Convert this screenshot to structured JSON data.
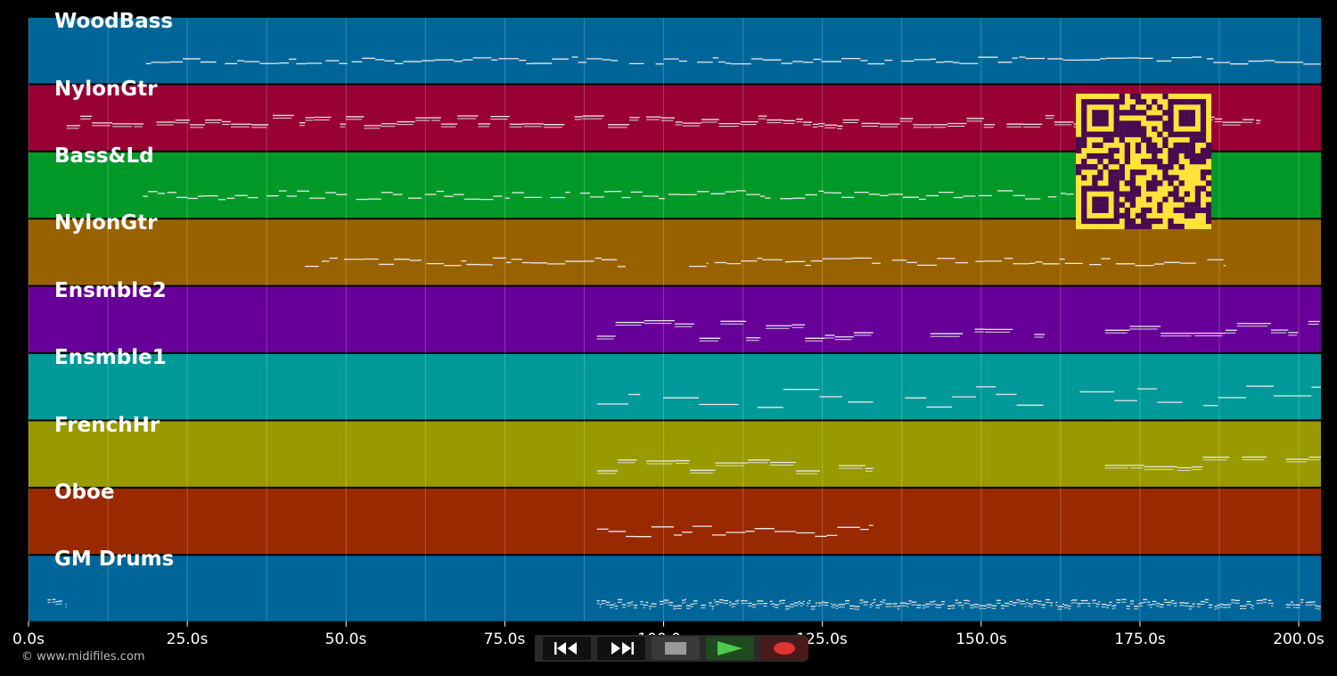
{
  "tracks": [
    {
      "name": "WoodBass",
      "color": "#006699"
    },
    {
      "name": "NylonGtr",
      "color": "#990033"
    },
    {
      "name": "Bass&Ld",
      "color": "#009928"
    },
    {
      "name": "NylonGtr",
      "color": "#996200"
    },
    {
      "name": "Ensmble2",
      "color": "#660099"
    },
    {
      "name": "Ensmble1",
      "color": "#009999"
    },
    {
      "name": "FrenchHr",
      "color": "#999900"
    },
    {
      "name": "Oboe",
      "color": "#992900"
    },
    {
      "name": "GM Drums",
      "color": "#006699"
    }
  ],
  "timeline": {
    "ticks": [
      "0.0s",
      "25.0s",
      "50.0s",
      "75.0s",
      "100.0s",
      "125.0s",
      "150.0s",
      "175.0s",
      "200.0s"
    ],
    "max_seconds": 203.5
  },
  "copyright": "© www.midifiles.com",
  "transport": {
    "buttons": [
      {
        "name": "rewind-button",
        "icon": "rewind-icon"
      },
      {
        "name": "fast-forward-button",
        "icon": "fast-forward-icon"
      },
      {
        "name": "stop-button",
        "icon": "stop-icon"
      },
      {
        "name": "play-button",
        "icon": "play-icon"
      },
      {
        "name": "record-button",
        "icon": "record-icon"
      }
    ]
  },
  "qr": {
    "icon": "qr-code-icon",
    "fg": "#4a0a50",
    "bg": "#ffe23a"
  }
}
